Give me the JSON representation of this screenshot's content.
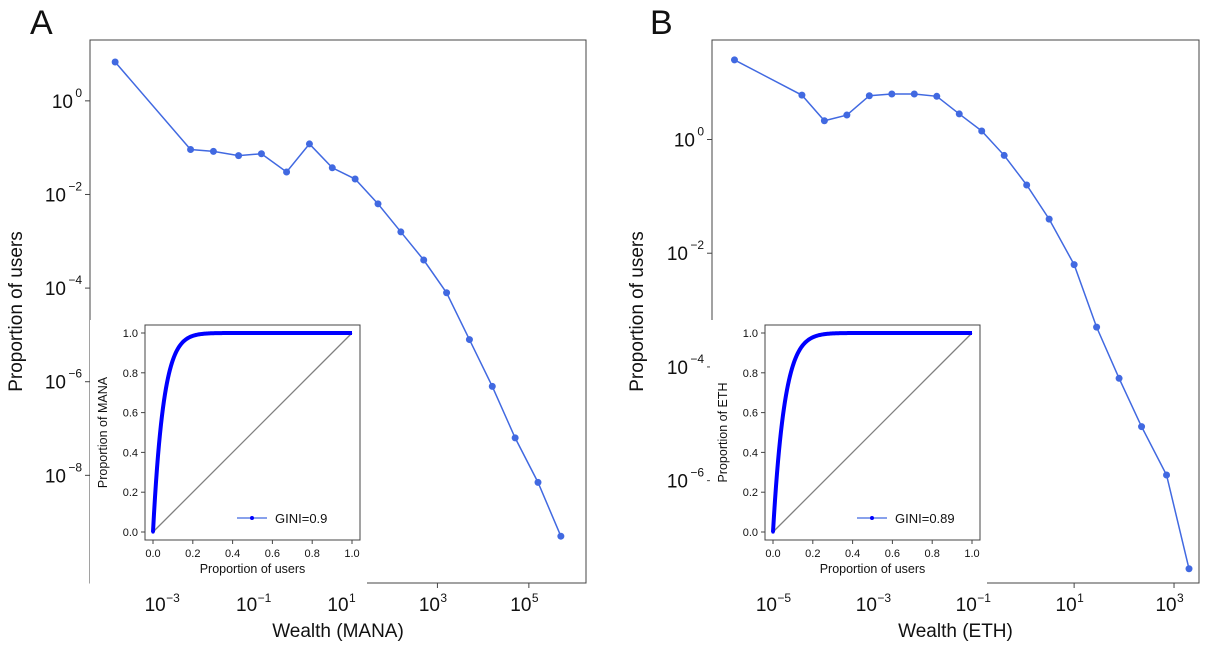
{
  "colors": {
    "series": "#4169e1",
    "lorenz": "#0000ff",
    "diagonal": "#808080",
    "frame": "#444444"
  },
  "chart_data": [
    {
      "panel": "A",
      "type": "line",
      "xscale": "log",
      "yscale": "log",
      "xlabel": "Wealth (MANA)",
      "ylabel": "Proportion of users",
      "x_log10_range": [
        -4.6,
        6.25
      ],
      "y_log10_range": [
        -10.3,
        1.3
      ],
      "x_ticks": [
        {
          "exp": -3,
          "base": "10",
          "power": "−3"
        },
        {
          "exp": -1,
          "base": "10",
          "power": "−1"
        },
        {
          "exp": 1,
          "base": "10",
          "power": "1"
        },
        {
          "exp": 3,
          "base": "10",
          "power": "3"
        },
        {
          "exp": 5,
          "base": "10",
          "power": "5"
        }
      ],
      "y_ticks": [
        {
          "exp": 0,
          "base": "10",
          "power": "0"
        },
        {
          "exp": -2,
          "base": "10",
          "power": "−2"
        },
        {
          "exp": -4,
          "base": "10",
          "power": "−4"
        },
        {
          "exp": -6,
          "base": "10",
          "power": "−6"
        },
        {
          "exp": -8,
          "base": "10",
          "power": "−8"
        }
      ],
      "x_log10": [
        -4.05,
        -2.4,
        -1.9,
        -1.35,
        -0.85,
        -0.3,
        0.2,
        0.7,
        1.2,
        1.7,
        2.2,
        2.7,
        3.2,
        3.7,
        4.2,
        4.7,
        5.2,
        5.7
      ],
      "y_log10": [
        0.83,
        -1.04,
        -1.08,
        -1.17,
        -1.13,
        -1.52,
        -0.92,
        -1.43,
        -1.67,
        -2.2,
        -2.8,
        -3.4,
        -4.1,
        -5.1,
        -6.1,
        -7.2,
        -8.15,
        -9.3
      ],
      "inset": {
        "xlabel": "Proportion of users",
        "ylabel": "Proportion of MANA",
        "ticks": [
          "0.0",
          "0.2",
          "0.4",
          "0.6",
          "0.8",
          "1.0"
        ],
        "legend": "GINI=0.9",
        "gini": 0.9
      }
    },
    {
      "panel": "B",
      "type": "line",
      "xscale": "log",
      "yscale": "log",
      "xlabel": "Wealth (ETH)",
      "ylabel": "Proportion of users",
      "x_log10_range": [
        -6.25,
        3.5
      ],
      "y_log10_range": [
        -7.8,
        1.75
      ],
      "x_ticks": [
        {
          "exp": -5,
          "base": "10",
          "power": "−5"
        },
        {
          "exp": -3,
          "base": "10",
          "power": "−3"
        },
        {
          "exp": -1,
          "base": "10",
          "power": "−1"
        },
        {
          "exp": 1,
          "base": "10",
          "power": "1"
        },
        {
          "exp": 3,
          "base": "10",
          "power": "3"
        }
      ],
      "y_ticks": [
        {
          "exp": 0,
          "base": "10",
          "power": "0"
        },
        {
          "exp": -2,
          "base": "10",
          "power": "−2"
        },
        {
          "exp": -4,
          "base": "10",
          "power": "−4"
        },
        {
          "exp": -6,
          "base": "10",
          "power": "−6"
        }
      ],
      "x_log10": [
        -5.8,
        -4.45,
        -4.0,
        -3.55,
        -3.1,
        -2.65,
        -2.2,
        -1.75,
        -1.3,
        -0.85,
        -0.4,
        0.05,
        0.5,
        1.0,
        1.45,
        1.9,
        2.35,
        2.85,
        3.3
      ],
      "y_log10": [
        1.4,
        0.78,
        0.33,
        0.43,
        0.77,
        0.8,
        0.8,
        0.76,
        0.45,
        0.15,
        -0.28,
        -0.8,
        -1.4,
        -2.2,
        -3.3,
        -4.2,
        -5.05,
        -5.9,
        -7.55
      ],
      "inset": {
        "xlabel": "Proportion of users",
        "ylabel": "Proportion of ETH",
        "ticks": [
          "0.0",
          "0.2",
          "0.4",
          "0.6",
          "0.8",
          "1.0"
        ],
        "legend": "GINI=0.89",
        "gini": 0.89
      }
    }
  ]
}
